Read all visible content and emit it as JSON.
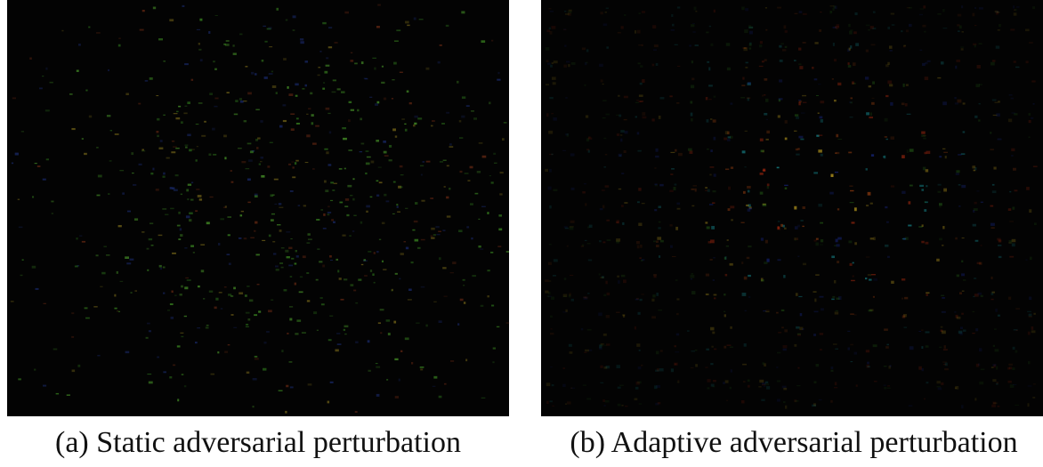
{
  "figure": {
    "panels": [
      {
        "caption": "(a) Static adversarial perturbation"
      },
      {
        "caption": "(b) Adaptive adversarial perturbation"
      }
    ]
  }
}
